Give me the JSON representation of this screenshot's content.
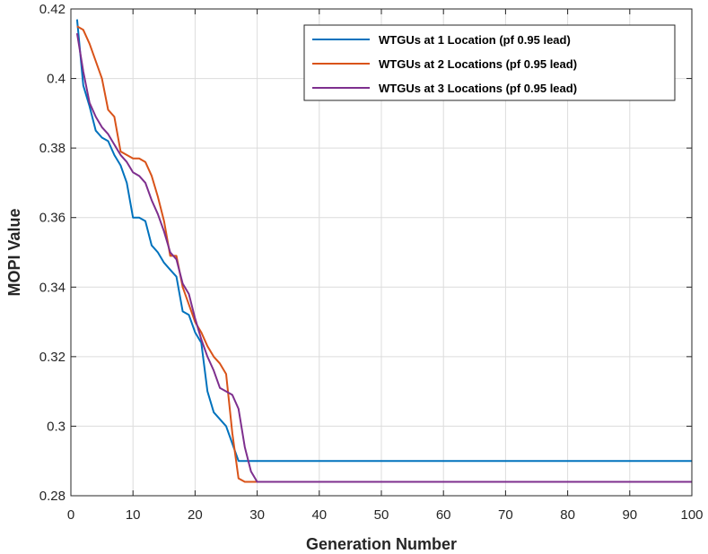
{
  "chart_data": {
    "type": "line",
    "title": "",
    "xlabel": "Generation Number",
    "ylabel": "MOPI Value",
    "xlim": [
      0,
      100
    ],
    "ylim": [
      0.28,
      0.42
    ],
    "xticks": [
      0,
      10,
      20,
      30,
      40,
      50,
      60,
      70,
      80,
      90,
      100
    ],
    "yticks": [
      0.28,
      0.3,
      0.32,
      0.34,
      0.36,
      0.38,
      0.4,
      0.42
    ],
    "xtick_labels": [
      "0",
      "10",
      "20",
      "30",
      "40",
      "50",
      "60",
      "70",
      "80",
      "90",
      "100"
    ],
    "ytick_labels": [
      "0.28",
      "0.3",
      "0.32",
      "0.34",
      "0.36",
      "0.38",
      "0.4",
      "0.42"
    ],
    "grid": true,
    "legend_position": "top-right",
    "series": [
      {
        "name": "WTGUs at 1 Location  (pf 0.95 lead)",
        "color": "#0072BD",
        "x": [
          1,
          2,
          3,
          4,
          5,
          6,
          7,
          8,
          9,
          10,
          11,
          12,
          13,
          14,
          15,
          16,
          17,
          18,
          19,
          20,
          21,
          22,
          23,
          24,
          25,
          26,
          27,
          28,
          29,
          30,
          100
        ],
        "y": [
          0.417,
          0.398,
          0.392,
          0.385,
          0.383,
          0.382,
          0.378,
          0.375,
          0.37,
          0.36,
          0.36,
          0.359,
          0.352,
          0.35,
          0.347,
          0.345,
          0.343,
          0.333,
          0.332,
          0.327,
          0.324,
          0.31,
          0.304,
          0.302,
          0.3,
          0.295,
          0.29,
          0.29,
          0.29,
          0.29,
          0.29
        ]
      },
      {
        "name": "WTGUs at 2 Locations (pf 0.95 lead)",
        "color": "#D95319",
        "x": [
          1,
          2,
          3,
          4,
          5,
          6,
          7,
          8,
          9,
          10,
          11,
          12,
          13,
          14,
          15,
          16,
          17,
          18,
          19,
          20,
          21,
          22,
          23,
          24,
          25,
          26,
          27,
          28,
          29,
          30,
          100
        ],
        "y": [
          0.415,
          0.414,
          0.41,
          0.405,
          0.4,
          0.391,
          0.389,
          0.379,
          0.378,
          0.377,
          0.377,
          0.376,
          0.372,
          0.366,
          0.359,
          0.349,
          0.349,
          0.34,
          0.335,
          0.33,
          0.327,
          0.323,
          0.32,
          0.318,
          0.315,
          0.298,
          0.285,
          0.284,
          0.284,
          0.284,
          0.284
        ]
      },
      {
        "name": "WTGUs at 3 Locations (pf 0.95 lead)",
        "color": "#7E2F8E",
        "x": [
          1,
          2,
          3,
          4,
          5,
          6,
          7,
          8,
          9,
          10,
          11,
          12,
          13,
          14,
          15,
          16,
          17,
          18,
          19,
          20,
          21,
          22,
          23,
          24,
          25,
          26,
          27,
          28,
          29,
          30,
          100
        ],
        "y": [
          0.413,
          0.402,
          0.393,
          0.389,
          0.386,
          0.384,
          0.381,
          0.378,
          0.376,
          0.373,
          0.372,
          0.37,
          0.365,
          0.361,
          0.356,
          0.35,
          0.348,
          0.341,
          0.338,
          0.331,
          0.325,
          0.32,
          0.316,
          0.311,
          0.31,
          0.309,
          0.305,
          0.294,
          0.287,
          0.284,
          0.284
        ]
      }
    ]
  }
}
